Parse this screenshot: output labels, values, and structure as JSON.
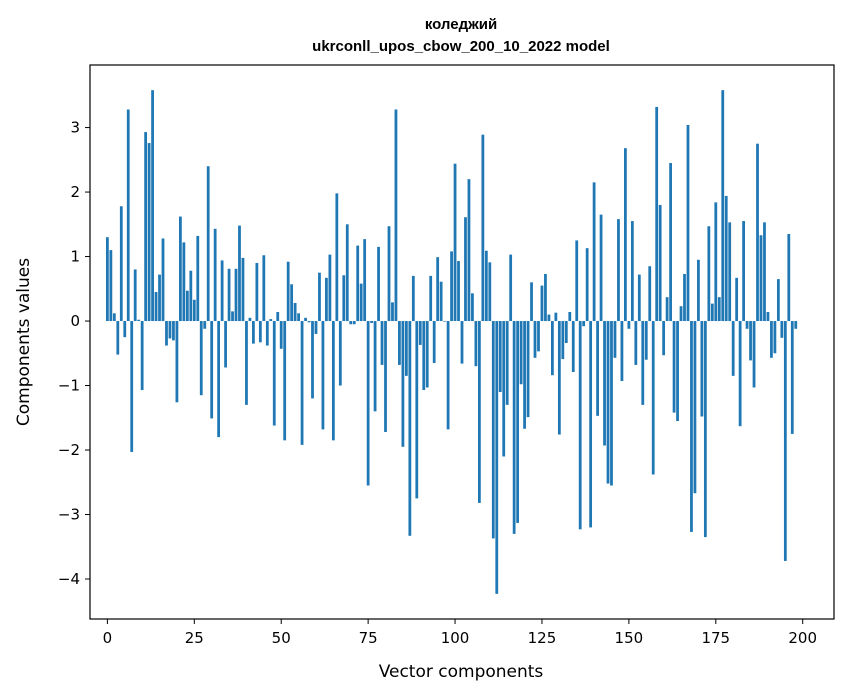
{
  "chart_data": {
    "type": "bar",
    "title": "коледжий",
    "subtitle": "ukrconll_upos_cbow_200_10_2022 model",
    "xlabel": "Vector components",
    "ylabel": "Components values",
    "xlim": [
      -5,
      209
    ],
    "ylim": [
      -4.62,
      3.97
    ],
    "xticks": [
      0,
      25,
      50,
      75,
      100,
      125,
      150,
      175,
      200
    ],
    "yticks": [
      -4,
      -3,
      -2,
      -1,
      0,
      1,
      2,
      3
    ],
    "ytick_labels": [
      "−4",
      "−3",
      "−2",
      "−1",
      "0",
      "1",
      "2",
      "3"
    ],
    "bar_color": "#1f77b4",
    "grid": false,
    "legend": "none",
    "values": [
      1.3,
      1.1,
      0.12,
      -0.52,
      1.78,
      -0.25,
      3.28,
      -2.03,
      0.8,
      0.02,
      -1.07,
      2.93,
      2.76,
      3.58,
      0.45,
      0.72,
      1.28,
      -0.38,
      -0.27,
      -0.3,
      -1.26,
      1.62,
      1.22,
      0.47,
      0.78,
      0.33,
      1.32,
      -1.15,
      -0.12,
      2.4,
      -1.51,
      1.43,
      -1.8,
      0.94,
      -0.72,
      0.81,
      0.15,
      0.81,
      1.48,
      0.98,
      -1.3,
      0.05,
      -0.35,
      0.9,
      -0.33,
      1.02,
      -0.38,
      0.03,
      -1.62,
      0.14,
      -0.43,
      -1.85,
      0.92,
      0.57,
      0.28,
      0.12,
      -1.92,
      0.05,
      -0.02,
      -1.2,
      -0.2,
      0.75,
      -1.68,
      0.67,
      1.03,
      -1.85,
      1.98,
      -1.0,
      0.71,
      1.5,
      -0.05,
      -0.05,
      1.17,
      0.58,
      1.27,
      -2.55,
      -0.03,
      -1.4,
      1.15,
      -0.68,
      -1.72,
      1.47,
      0.29,
      3.28,
      -0.68,
      -1.95,
      -0.85,
      -3.33,
      0.7,
      -2.75,
      -0.37,
      -1.07,
      -1.03,
      0.7,
      -0.65,
      0.99,
      0.61,
      0.0,
      -1.68,
      1.08,
      2.44,
      0.93,
      -0.66,
      1.61,
      2.2,
      0.43,
      -0.7,
      -2.82,
      2.89,
      1.09,
      0.91,
      -3.37,
      -4.23,
      -1.1,
      -2.1,
      -1.3,
      1.03,
      -3.3,
      -3.13,
      -0.98,
      -1.67,
      -1.49,
      0.6,
      -0.57,
      -0.47,
      0.55,
      0.73,
      0.1,
      -0.84,
      0.13,
      -1.76,
      -0.59,
      -0.34,
      0.14,
      -0.79,
      1.25,
      -3.23,
      -0.08,
      1.13,
      -3.2,
      2.15,
      -1.47,
      1.65,
      -1.93,
      -2.52,
      -2.55,
      -0.57,
      1.58,
      -0.93,
      2.68,
      -0.12,
      1.55,
      -0.68,
      0.72,
      -1.3,
      -0.6,
      0.85,
      -2.38,
      3.32,
      1.8,
      -0.53,
      0.37,
      2.45,
      -1.42,
      -1.55,
      0.23,
      0.73,
      3.04,
      -3.27,
      -2.67,
      0.95,
      -1.48,
      -3.35,
      1.47,
      0.27,
      1.84,
      0.37,
      3.58,
      1.94,
      1.53,
      -0.85,
      0.67,
      -1.63,
      1.55,
      -0.12,
      -0.61,
      -1.03,
      2.75,
      1.33,
      1.53,
      0.14,
      -0.57,
      -0.5,
      0.65,
      -0.26,
      -3.72,
      1.35,
      -1.75,
      -0.12
    ]
  }
}
